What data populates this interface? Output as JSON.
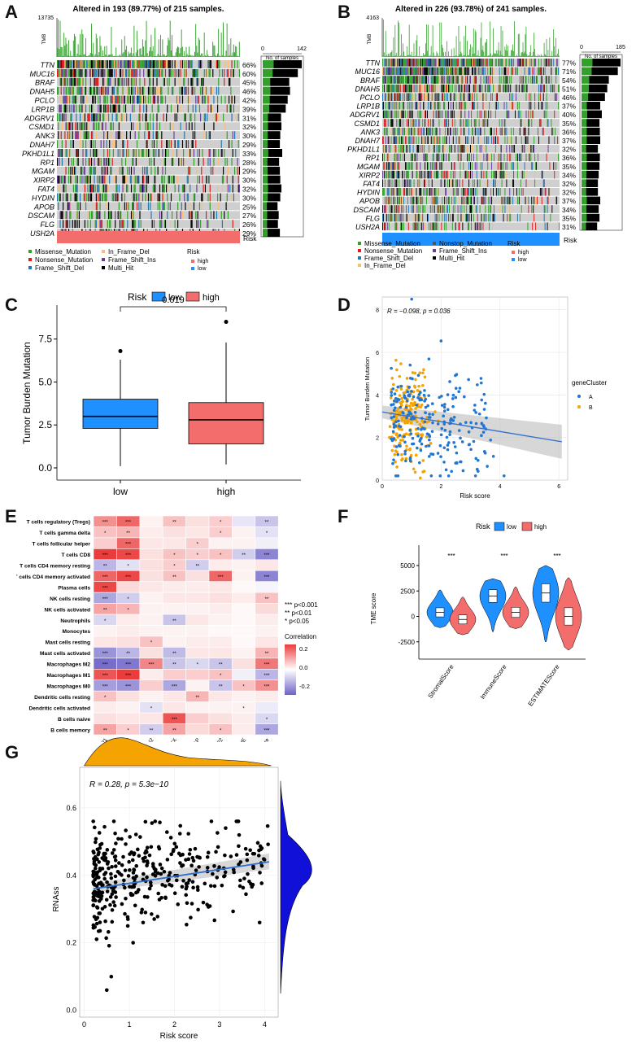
{
  "panel_labels": {
    "A": "A",
    "B": "B",
    "C": "C",
    "D": "D",
    "E": "E",
    "F": "F",
    "G": "G"
  },
  "panelA": {
    "title": "Altered in 193 (89.77%) of 215 samples.",
    "tmb_label": "TMB",
    "tmb_max": "13735",
    "bar_axis": {
      "min": "0",
      "max": "142",
      "label": "No. of samples"
    },
    "genes": [
      "TTN",
      "MUC16",
      "BRAF",
      "DNAH5",
      "PCLO",
      "LRP1B",
      "ADGRV1",
      "CSMD1",
      "ANK3",
      "DNAH7",
      "PKHD1L1",
      "RP1",
      "MGAM",
      "XIRP2",
      "FAT4",
      "HYDIN",
      "APOB",
      "DSCAM",
      "FLG",
      "USH2A"
    ],
    "pct": [
      "66%",
      "60%",
      "45%",
      "46%",
      "42%",
      "39%",
      "31%",
      "32%",
      "30%",
      "29%",
      "33%",
      "28%",
      "29%",
      "30%",
      "32%",
      "30%",
      "25%",
      "27%",
      "26%",
      "29%"
    ],
    "risk_label": "Risk",
    "legend": [
      "Missense_Mutation",
      "Nonsense_Mutation",
      "Frame_Shift_Del",
      "In_Frame_Del",
      "Frame_Shift_Ins",
      "Multi_Hit"
    ],
    "risk_legend_title": "Risk",
    "risk_legend": [
      "high",
      "low"
    ]
  },
  "panelB": {
    "title": "Altered in 226 (93.78%) of 241 samples.",
    "tmb_label": "TMB",
    "tmb_max": "4163",
    "bar_axis": {
      "min": "0",
      "max": "185",
      "label": "No. of samples"
    },
    "genes": [
      "TTN",
      "MUC16",
      "BRAF",
      "DNAH5",
      "PCLO",
      "LRP1B",
      "ADGRV1",
      "CSMD1",
      "ANK3",
      "DNAH7",
      "PKHD1L1",
      "RP1",
      "MGAM",
      "XIRP2",
      "FAT4",
      "HYDIN",
      "APOB",
      "DSCAM",
      "FLG",
      "USH2A"
    ],
    "pct": [
      "77%",
      "71%",
      "54%",
      "51%",
      "46%",
      "37%",
      "40%",
      "35%",
      "36%",
      "37%",
      "32%",
      "36%",
      "35%",
      "34%",
      "32%",
      "32%",
      "37%",
      "34%",
      "35%",
      "31%"
    ],
    "risk_label": "Risk",
    "legend": [
      "Missense_Mutation",
      "Nonsense_Mutation",
      "Frame_Shift_Del",
      "In_Frame_Del",
      "Nonstop_Mutation",
      "Frame_Shift_Ins",
      "Multi_Hit"
    ],
    "risk_legend_title": "Risk",
    "risk_legend": [
      "high",
      "low"
    ]
  },
  "colors": {
    "missense": "#33a02c",
    "nonsense": "#e31a1c",
    "fsdel": "#1f78b4",
    "inframe": "#fdbf6f",
    "fsins": "#6a3d9a",
    "multihit": "#000000",
    "high": "#f46d6d",
    "low": "#1e90ff",
    "orange": "#f5a300"
  },
  "chart_data": [
    {
      "type": "box",
      "id": "C",
      "legend_title": "Risk",
      "categories": [
        "low",
        "high"
      ],
      "series": [
        {
          "name": "low",
          "median": 3.0,
          "q1": 2.3,
          "q3": 4.0,
          "whisker_low": 0.1,
          "whisker_high": 6.3,
          "outliers": [
            6.8
          ]
        },
        {
          "name": "high",
          "median": 2.8,
          "q1": 1.4,
          "q3": 3.8,
          "whisker_low": 0.2,
          "whisker_high": 7.3,
          "outliers": [
            8.5
          ]
        }
      ],
      "ylabel": "Tumor Burden Mutation",
      "yticks": [
        "0.0",
        "2.5",
        "5.0",
        "7.5"
      ],
      "ylim": [
        0,
        9
      ],
      "pvalue": "0.019"
    },
    {
      "type": "scatter",
      "id": "D",
      "annotation": "R = −0.098, p = 0.036",
      "xlabel": "Risk score",
      "ylabel": "Tumor Burden Mutation",
      "xticks": [
        "0",
        "2",
        "4",
        "6"
      ],
      "yticks": [
        "0",
        "2",
        "4",
        "6",
        "8"
      ],
      "xlim": [
        0,
        6.3
      ],
      "ylim": [
        0,
        8.6
      ],
      "legend_title": "geneCluster",
      "legend": [
        "A",
        "B"
      ],
      "fit": {
        "x": [
          0,
          6.1
        ],
        "y": [
          3.2,
          1.8
        ]
      }
    },
    {
      "type": "heatmap",
      "id": "E",
      "rows": [
        "T cells regulatory (Tregs)",
        "T cells gamma delta",
        "T cells follicular helper",
        "T cells CD8",
        "T cells CD4 memory resting",
        "T cells CD4 memory activated",
        "Plasma cells",
        "NK cells resting",
        "NK cells activated",
        "Neutrophils",
        "Monocytes",
        "Mast cells resting",
        "Mast cells activated",
        "Macrophages M2",
        "Macrophages M1",
        "Macrophages M0",
        "Dendritic cells resting",
        "Dendritic cells activated",
        "B cells naive",
        "B cells memory"
      ],
      "columns": [
        "JSRP1",
        "HAPLN3",
        "SNAI2",
        "HHEX",
        "RAP1GAP",
        "ERAP2",
        "BCHE",
        "riskScore"
      ],
      "values": [
        [
          0.18,
          0.25,
          0.02,
          0.1,
          0.05,
          0.08,
          -0.05,
          -0.12
        ],
        [
          0.1,
          0.12,
          0.03,
          0.05,
          0.04,
          0.08,
          0.02,
          -0.06
        ],
        [
          0.08,
          0.25,
          0.04,
          0.04,
          0.08,
          0.02,
          0.02,
          -0.03
        ],
        [
          0.32,
          0.3,
          0.05,
          0.1,
          0.08,
          0.1,
          -0.1,
          -0.25
        ],
        [
          -0.15,
          -0.06,
          0.05,
          0.08,
          -0.1,
          0.03,
          0.02,
          0.04
        ],
        [
          0.25,
          0.3,
          0.05,
          0.1,
          0.05,
          0.25,
          0.02,
          -0.25
        ],
        [
          0.3,
          0.06,
          0.04,
          0.03,
          0.03,
          0.04,
          0.01,
          -0.02
        ],
        [
          -0.18,
          -0.1,
          0.02,
          0.04,
          0.04,
          0.05,
          0.03,
          0.1
        ],
        [
          0.15,
          0.12,
          0.02,
          0.02,
          0.02,
          0.03,
          0.01,
          0.06
        ],
        [
          -0.08,
          0.03,
          0.02,
          -0.12,
          0.04,
          0.02,
          0.01,
          0.03
        ],
        [
          0.02,
          0.03,
          0.02,
          0.02,
          0.02,
          0.01,
          0.01,
          0.02
        ],
        [
          0.04,
          0.05,
          0.1,
          0.02,
          0.03,
          0.03,
          0.01,
          0.04
        ],
        [
          -0.22,
          -0.15,
          0.05,
          -0.14,
          0.04,
          0.04,
          0.02,
          0.12
        ],
        [
          -0.3,
          -0.28,
          0.2,
          -0.12,
          -0.08,
          -0.12,
          0.05,
          0.22
        ],
        [
          0.28,
          0.32,
          0.03,
          0.08,
          0.08,
          0.1,
          -0.03,
          -0.15
        ],
        [
          -0.2,
          -0.22,
          0.08,
          -0.18,
          0.02,
          -0.12,
          0.1,
          0.18
        ],
        [
          0.1,
          0.05,
          0.02,
          0.04,
          0.12,
          0.04,
          0.02,
          0.03
        ],
        [
          0.03,
          0.02,
          -0.06,
          0.04,
          0.02,
          0.02,
          0.02,
          -0.04
        ],
        [
          0.05,
          0.04,
          0.04,
          0.28,
          0.08,
          0.05,
          0.03,
          -0.08
        ],
        [
          0.15,
          0.08,
          -0.1,
          0.15,
          0.06,
          0.1,
          0.03,
          -0.18
        ]
      ],
      "stars": [
        [
          "***",
          "***",
          "",
          "**",
          "",
          "*",
          "",
          "**"
        ],
        [
          "*",
          "**",
          "",
          "",
          "",
          "*",
          "",
          "*"
        ],
        [
          "",
          "***",
          "",
          "",
          "*",
          "",
          "",
          ""
        ],
        [
          "***",
          "***",
          "",
          "*",
          "*",
          "*",
          "**",
          "***"
        ],
        [
          "**",
          "*",
          "",
          "*",
          "**",
          "",
          "",
          ""
        ],
        [
          "***",
          "***",
          "",
          "**",
          "",
          "***",
          "",
          "***"
        ],
        [
          "***",
          "",
          "",
          "",
          "",
          "",
          "",
          ""
        ],
        [
          "***",
          "*",
          "",
          "",
          "",
          "",
          "",
          "**"
        ],
        [
          "**",
          "*",
          "",
          "",
          "",
          "",
          "",
          ""
        ],
        [
          "*",
          "",
          "",
          "**",
          "",
          "",
          "",
          ""
        ],
        [
          "",
          "",
          "",
          "",
          "",
          "",
          "",
          ""
        ],
        [
          "",
          "",
          "*",
          "",
          "",
          "",
          "",
          ""
        ],
        [
          "***",
          "**",
          "",
          "**",
          "",
          "",
          "",
          "**"
        ],
        [
          "***",
          "***",
          "***",
          "**",
          "*",
          "**",
          "",
          "***"
        ],
        [
          "***",
          "***",
          "",
          "",
          "",
          "*",
          "",
          "***"
        ],
        [
          "***",
          "***",
          "",
          "***",
          "",
          "**",
          "*",
          "***"
        ],
        [
          "*",
          "",
          "",
          "",
          "**",
          "",
          "",
          ""
        ],
        [
          "",
          "",
          "*",
          "",
          "",
          "",
          "*",
          ""
        ],
        [
          "",
          "",
          "",
          "***",
          "",
          "",
          "",
          "*"
        ],
        [
          "**",
          "*",
          "**",
          "**",
          "",
          "*",
          "",
          "***"
        ]
      ],
      "sig_legend": [
        "*** p<0.001",
        "**  p<0.01",
        "*  p<0.05"
      ],
      "colorbar_title": "Correlation",
      "colorbar_ticks": [
        "0.2",
        "0.0",
        "-0.2"
      ]
    },
    {
      "type": "violin",
      "id": "F",
      "legend_title": "Risk",
      "legend": [
        "low",
        "high"
      ],
      "categories": [
        "StromalScore",
        "ImmuneScore",
        "ESTIMATEScore"
      ],
      "series": [
        {
          "name": "low",
          "median": [
            400,
            2000,
            2300
          ],
          "min": [
            -1100,
            -1500,
            -2500
          ],
          "max": [
            2600,
            3700,
            5000
          ]
        },
        {
          "name": "high",
          "median": [
            -300,
            400,
            0
          ],
          "min": [
            -1800,
            -1200,
            -3300
          ],
          "max": [
            1900,
            2900,
            3800
          ]
        }
      ],
      "significance": [
        "***",
        "***",
        "***"
      ],
      "ylabel": "TME score",
      "yticks": [
        "-2500",
        "0",
        "2500",
        "5000"
      ],
      "ylim": [
        -3800,
        6200
      ]
    },
    {
      "type": "scatter",
      "id": "G",
      "annotation": "R = 0.28, p = 5.3e−10",
      "xlabel": "Risk score",
      "ylabel": "RNAss",
      "xticks": [
        "0",
        "1",
        "2",
        "3",
        "4"
      ],
      "yticks": [
        "0.0",
        "0.2",
        "0.4",
        "0.6"
      ],
      "xlim": [
        -0.1,
        4.3
      ],
      "ylim": [
        -0.02,
        0.72
      ],
      "fit": {
        "x": [
          0.2,
          4.1
        ],
        "y": [
          0.36,
          0.44
        ]
      }
    }
  ]
}
